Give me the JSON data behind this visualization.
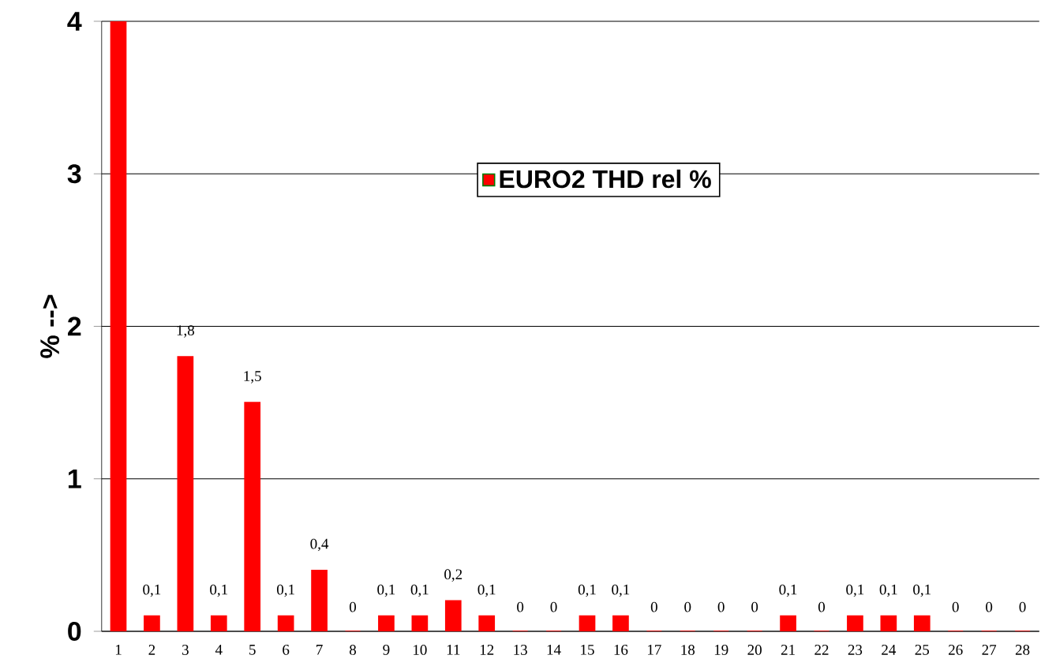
{
  "chart_data": {
    "type": "bar",
    "ylabel": "% -->",
    "categories": [
      "1",
      "2",
      "3",
      "4",
      "5",
      "6",
      "7",
      "8",
      "9",
      "10",
      "11",
      "12",
      "13",
      "14",
      "15",
      "16",
      "17",
      "18",
      "19",
      "20",
      "21",
      "22",
      "23",
      "24",
      "25",
      "26",
      "27",
      "28"
    ],
    "series": [
      {
        "name": "EURO2 THD rel %",
        "color": "#ff0000",
        "values": [
          4,
          0.1,
          1.8,
          0.1,
          1.5,
          0.1,
          0.4,
          0,
          0.1,
          0.1,
          0.2,
          0.1,
          0,
          0,
          0.1,
          0.1,
          0,
          0,
          0,
          0,
          0.1,
          0,
          0.1,
          0.1,
          0.1,
          0,
          0,
          0
        ],
        "value_labels": [
          null,
          "0,1",
          "1,8",
          "0,1",
          "1,5",
          "0,1",
          "0,4",
          "0",
          "0,1",
          "0,1",
          "0,2",
          "0,1",
          "0",
          "0",
          "0,1",
          "0,1",
          "0",
          "0",
          "0",
          "0",
          "0,1",
          "0",
          "0,1",
          "0,1",
          "0,1",
          "0",
          "0",
          "0"
        ]
      }
    ],
    "ylim": [
      0,
      4
    ],
    "yticks": [
      0,
      1,
      2,
      3,
      4
    ],
    "grid": "y",
    "legend": "top"
  }
}
